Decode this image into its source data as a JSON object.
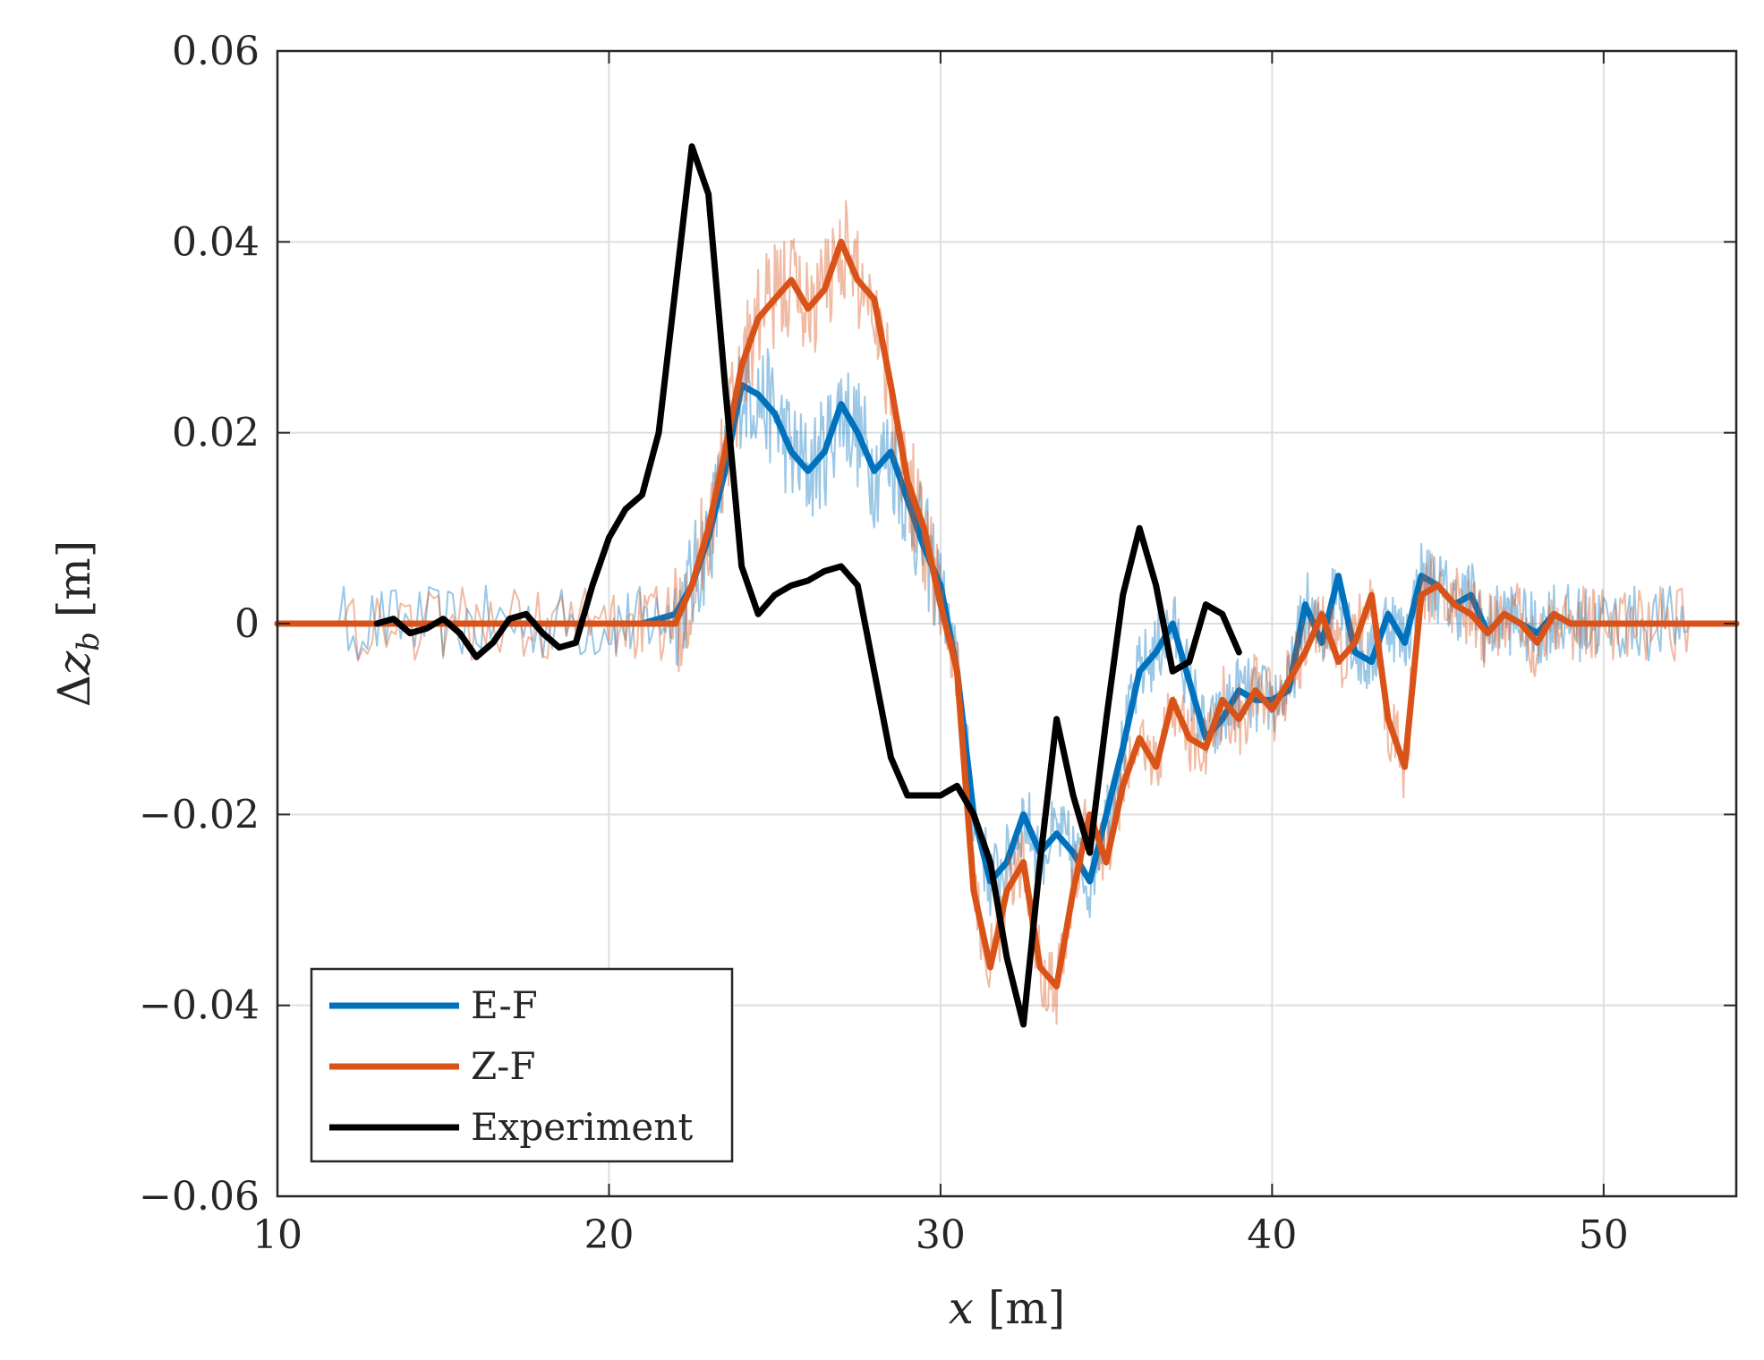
{
  "chart_data": {
    "type": "line",
    "title": "",
    "xlabel": "x [m]",
    "ylabel": "Δz_b [m]",
    "xlabel_parts": {
      "var": "x",
      "unit": " [m]"
    },
    "ylabel_parts": {
      "delta": "Δ",
      "var": "z",
      "sub": "b",
      "unit": " [m]"
    },
    "xlim": [
      10,
      54
    ],
    "ylim": [
      -0.06,
      0.06
    ],
    "xticks": [
      10,
      20,
      30,
      40,
      50
    ],
    "yticks": [
      -0.06,
      -0.04,
      -0.02,
      0,
      0.02,
      0.04,
      0.06
    ],
    "xtick_labels": [
      "10",
      "20",
      "30",
      "40",
      "50"
    ],
    "ytick_labels": [
      "−0.06",
      "−0.04",
      "−0.02",
      "0",
      "0.02",
      "0.04",
      "0.06"
    ],
    "grid": true,
    "legend_position": "bottom-left",
    "series": [
      {
        "name": "E-F",
        "color": "#0072BD",
        "x": [
          10,
          12,
          14,
          16,
          18,
          20,
          21,
          22,
          22.5,
          23,
          23.5,
          24,
          24.5,
          25,
          25.5,
          26,
          26.5,
          27,
          27.5,
          28,
          28.5,
          29,
          29.5,
          30,
          30.5,
          31,
          31.5,
          32,
          32.5,
          33,
          33.5,
          34,
          34.5,
          35,
          35.5,
          36,
          36.5,
          37,
          37.5,
          38,
          38.5,
          39,
          39.5,
          40,
          40.5,
          41,
          41.5,
          42,
          42.5,
          43,
          43.5,
          44,
          44.5,
          45,
          45.5,
          46,
          46.5,
          47,
          47.5,
          48,
          48.5,
          49,
          49.5,
          50,
          51,
          52,
          53,
          54
        ],
        "y": [
          0,
          0,
          0,
          0,
          0,
          0,
          0,
          0.001,
          0.004,
          0.009,
          0.016,
          0.025,
          0.024,
          0.022,
          0.018,
          0.016,
          0.018,
          0.023,
          0.02,
          0.016,
          0.018,
          0.013,
          0.008,
          0.004,
          -0.005,
          -0.02,
          -0.027,
          -0.025,
          -0.02,
          -0.024,
          -0.022,
          -0.024,
          -0.027,
          -0.02,
          -0.013,
          -0.005,
          -0.003,
          0,
          -0.006,
          -0.012,
          -0.01,
          -0.007,
          -0.008,
          -0.008,
          -0.007,
          0.002,
          -0.002,
          0.005,
          -0.003,
          -0.004,
          0.001,
          -0.002,
          0.005,
          0.004,
          0.002,
          0.003,
          -0.001,
          0.001,
          0,
          -0.001,
          0.001,
          0,
          0,
          0,
          0,
          0,
          0,
          0
        ]
      },
      {
        "name": "Z-F",
        "color": "#D95319",
        "x": [
          10,
          12,
          14,
          16,
          18,
          20,
          21,
          22,
          22.5,
          23,
          23.5,
          24,
          24.5,
          25,
          25.5,
          26,
          26.5,
          27,
          27.5,
          28,
          28.5,
          29,
          29.5,
          30,
          30.5,
          31,
          31.5,
          32,
          32.5,
          33,
          33.5,
          34,
          34.5,
          35,
          35.5,
          36,
          36.5,
          37,
          37.5,
          38,
          38.5,
          39,
          39.5,
          40,
          40.5,
          41,
          41.5,
          42,
          42.5,
          43,
          43.5,
          44,
          44.5,
          45,
          45.5,
          46,
          46.5,
          47,
          47.5,
          48,
          48.5,
          49,
          49.5,
          50,
          51,
          52,
          53,
          54
        ],
        "y": [
          0,
          0,
          0,
          0,
          0,
          0,
          0,
          0,
          0.004,
          0.01,
          0.018,
          0.027,
          0.032,
          0.034,
          0.036,
          0.033,
          0.035,
          0.04,
          0.036,
          0.034,
          0.025,
          0.015,
          0.01,
          0.002,
          -0.005,
          -0.028,
          -0.036,
          -0.028,
          -0.025,
          -0.036,
          -0.038,
          -0.028,
          -0.02,
          -0.025,
          -0.017,
          -0.012,
          -0.015,
          -0.008,
          -0.012,
          -0.013,
          -0.008,
          -0.01,
          -0.007,
          -0.009,
          -0.006,
          -0.003,
          0.001,
          -0.004,
          -0.002,
          0.003,
          -0.01,
          -0.015,
          0.003,
          0.004,
          0.002,
          0.001,
          -0.001,
          0.001,
          0,
          -0.002,
          0.001,
          0,
          0,
          0,
          0,
          0,
          0,
          0
        ]
      },
      {
        "name": "Experiment",
        "color": "#000000",
        "x": [
          13,
          13.5,
          14,
          14.5,
          15,
          15.5,
          16,
          16.5,
          17,
          17.5,
          18,
          18.5,
          19,
          19.5,
          20,
          20.5,
          21,
          21.5,
          22,
          22.5,
          23,
          23.5,
          24,
          24.5,
          25,
          25.5,
          26,
          26.5,
          27,
          27.5,
          28,
          28.5,
          29,
          29.5,
          30,
          30.5,
          31,
          31.5,
          32,
          32.5,
          33,
          33.5,
          34,
          34.5,
          35,
          35.5,
          36,
          36.5,
          37,
          37.5,
          38,
          38.5,
          39
        ],
        "y": [
          0,
          0.0005,
          -0.001,
          -0.0005,
          0.0005,
          -0.001,
          -0.0035,
          -0.002,
          0.0005,
          0.001,
          -0.001,
          -0.0025,
          -0.002,
          0.004,
          0.009,
          0.012,
          0.0135,
          0.02,
          0.035,
          0.05,
          0.045,
          0.025,
          0.006,
          0.001,
          0.003,
          0.004,
          0.0045,
          0.0055,
          0.006,
          0.004,
          -0.005,
          -0.014,
          -0.018,
          -0.018,
          -0.018,
          -0.017,
          -0.02,
          -0.025,
          -0.035,
          -0.042,
          -0.025,
          -0.01,
          -0.018,
          -0.024,
          -0.01,
          0.003,
          0.01,
          0.004,
          -0.005,
          -0.004,
          0.002,
          0.001,
          -0.003
        ]
      }
    ]
  }
}
